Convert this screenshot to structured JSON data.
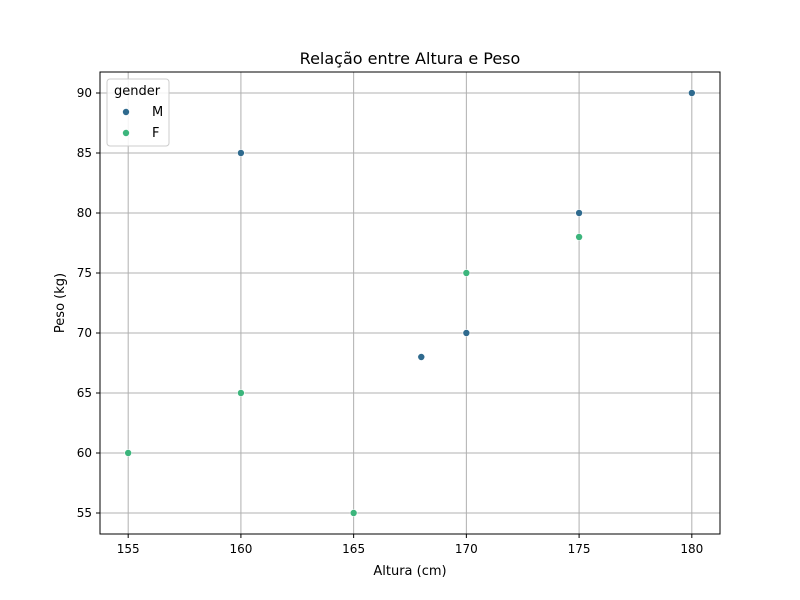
{
  "chart_data": {
    "type": "scatter",
    "title": "Relação entre Altura e Peso",
    "xlabel": "Altura (cm)",
    "ylabel": "Peso (kg)",
    "xlim": [
      153.75,
      181.25
    ],
    "ylim": [
      53.25,
      91.75
    ],
    "xticks": [
      155,
      160,
      165,
      170,
      175,
      180
    ],
    "yticks": [
      55,
      60,
      65,
      70,
      75,
      80,
      85,
      90
    ],
    "grid": true,
    "legend": {
      "title": "gender",
      "placement": "top-left"
    },
    "series": [
      {
        "name": "M",
        "color": "#2f6a8e",
        "points": [
          {
            "x": 160,
            "y": 85
          },
          {
            "x": 168,
            "y": 68
          },
          {
            "x": 170,
            "y": 70
          },
          {
            "x": 175,
            "y": 80
          },
          {
            "x": 180,
            "y": 90
          }
        ]
      },
      {
        "name": "F",
        "color": "#3cb57c",
        "points": [
          {
            "x": 155,
            "y": 60
          },
          {
            "x": 160,
            "y": 65
          },
          {
            "x": 165,
            "y": 55
          },
          {
            "x": 170,
            "y": 75
          },
          {
            "x": 175,
            "y": 78
          }
        ]
      }
    ]
  }
}
